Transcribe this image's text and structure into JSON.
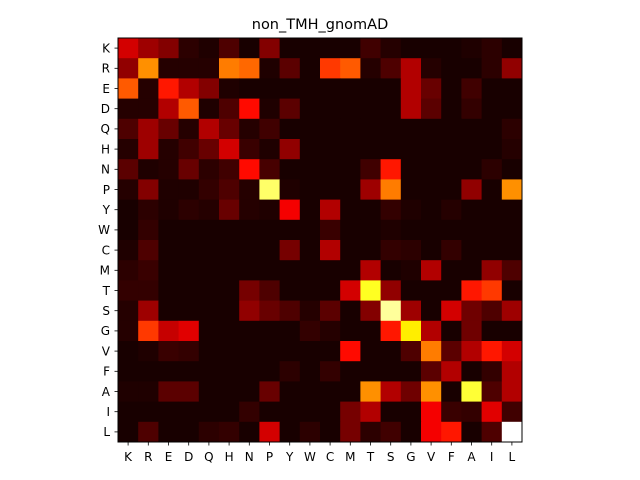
{
  "chart_data": {
    "type": "heatmap",
    "title": "non_TMH_gnomAD",
    "xlabel": "",
    "ylabel": "",
    "colormap": "hot",
    "x_labels": [
      "K",
      "R",
      "E",
      "D",
      "Q",
      "H",
      "N",
      "P",
      "Y",
      "W",
      "C",
      "M",
      "T",
      "S",
      "G",
      "V",
      "F",
      "A",
      "I",
      "L"
    ],
    "y_labels": [
      "K",
      "R",
      "E",
      "D",
      "Q",
      "H",
      "N",
      "P",
      "Y",
      "W",
      "C",
      "M",
      "T",
      "S",
      "G",
      "V",
      "F",
      "A",
      "I",
      "L"
    ],
    "vmin": 0,
    "vmax": 1,
    "values": [
      [
        0.3,
        0.22,
        0.18,
        0.05,
        0.03,
        0.1,
        0.02,
        0.18,
        0.02,
        0.02,
        0.02,
        0.02,
        0.08,
        0.04,
        0.02,
        0.02,
        0.02,
        0.03,
        0.05,
        0.02
      ],
      [
        0.2,
        0.58,
        0.04,
        0.04,
        0.04,
        0.55,
        0.52,
        0.03,
        0.12,
        0.02,
        0.45,
        0.5,
        0.04,
        0.1,
        0.25,
        0.04,
        0.02,
        0.02,
        0.05,
        0.2
      ],
      [
        0.5,
        0.04,
        0.4,
        0.25,
        0.18,
        0.03,
        0.02,
        0.02,
        0.02,
        0.02,
        0.02,
        0.02,
        0.02,
        0.02,
        0.25,
        0.14,
        0.02,
        0.08,
        0.02,
        0.02
      ],
      [
        0.04,
        0.04,
        0.25,
        0.5,
        0.03,
        0.1,
        0.38,
        0.03,
        0.12,
        0.02,
        0.02,
        0.02,
        0.02,
        0.02,
        0.25,
        0.12,
        0.02,
        0.06,
        0.02,
        0.02
      ],
      [
        0.1,
        0.22,
        0.14,
        0.04,
        0.25,
        0.14,
        0.04,
        0.08,
        0.02,
        0.02,
        0.02,
        0.02,
        0.02,
        0.02,
        0.02,
        0.02,
        0.02,
        0.02,
        0.02,
        0.05
      ],
      [
        0.04,
        0.22,
        0.04,
        0.08,
        0.14,
        0.3,
        0.07,
        0.03,
        0.2,
        0.02,
        0.02,
        0.02,
        0.02,
        0.02,
        0.02,
        0.02,
        0.02,
        0.02,
        0.02,
        0.04
      ],
      [
        0.12,
        0.03,
        0.04,
        0.14,
        0.05,
        0.08,
        0.38,
        0.09,
        0.02,
        0.02,
        0.02,
        0.02,
        0.08,
        0.4,
        0.02,
        0.02,
        0.02,
        0.02,
        0.05,
        0.02
      ],
      [
        0.04,
        0.18,
        0.03,
        0.03,
        0.06,
        0.1,
        0.04,
        0.85,
        0.03,
        0.02,
        0.02,
        0.02,
        0.22,
        0.55,
        0.02,
        0.02,
        0.02,
        0.2,
        0.02,
        0.58
      ],
      [
        0.02,
        0.05,
        0.03,
        0.05,
        0.04,
        0.14,
        0.04,
        0.03,
        0.35,
        0.02,
        0.25,
        0.02,
        0.02,
        0.06,
        0.03,
        0.02,
        0.04,
        0.02,
        0.02,
        0.02
      ],
      [
        0.02,
        0.06,
        0.02,
        0.02,
        0.02,
        0.02,
        0.02,
        0.02,
        0.02,
        0.02,
        0.07,
        0.02,
        0.02,
        0.03,
        0.02,
        0.02,
        0.02,
        0.02,
        0.02,
        0.02
      ],
      [
        0.03,
        0.1,
        0.02,
        0.02,
        0.02,
        0.02,
        0.02,
        0.02,
        0.16,
        0.02,
        0.25,
        0.02,
        0.02,
        0.06,
        0.05,
        0.02,
        0.06,
        0.02,
        0.02,
        0.02
      ],
      [
        0.05,
        0.07,
        0.02,
        0.02,
        0.02,
        0.02,
        0.02,
        0.02,
        0.02,
        0.02,
        0.02,
        0.02,
        0.25,
        0.02,
        0.03,
        0.25,
        0.02,
        0.02,
        0.2,
        0.1
      ],
      [
        0.06,
        0.06,
        0.02,
        0.02,
        0.02,
        0.02,
        0.16,
        0.1,
        0.02,
        0.02,
        0.02,
        0.3,
        0.78,
        0.2,
        0.02,
        0.02,
        0.02,
        0.4,
        0.45,
        0.02
      ],
      [
        0.04,
        0.22,
        0.02,
        0.02,
        0.02,
        0.02,
        0.2,
        0.14,
        0.1,
        0.04,
        0.12,
        0.02,
        0.18,
        0.9,
        0.22,
        0.02,
        0.3,
        0.15,
        0.1,
        0.22
      ],
      [
        0.04,
        0.45,
        0.28,
        0.32,
        0.02,
        0.02,
        0.02,
        0.02,
        0.02,
        0.06,
        0.04,
        0.02,
        0.02,
        0.4,
        0.72,
        0.25,
        0.02,
        0.15,
        0.02,
        0.02
      ],
      [
        0.02,
        0.03,
        0.07,
        0.06,
        0.02,
        0.02,
        0.02,
        0.02,
        0.02,
        0.02,
        0.02,
        0.38,
        0.02,
        0.02,
        0.1,
        0.55,
        0.12,
        0.25,
        0.4,
        0.3
      ],
      [
        0.02,
        0.02,
        0.02,
        0.02,
        0.02,
        0.02,
        0.02,
        0.02,
        0.05,
        0.02,
        0.06,
        0.02,
        0.02,
        0.02,
        0.02,
        0.12,
        0.25,
        0.02,
        0.06,
        0.25
      ],
      [
        0.03,
        0.03,
        0.12,
        0.12,
        0.02,
        0.02,
        0.02,
        0.14,
        0.02,
        0.02,
        0.02,
        0.02,
        0.58,
        0.25,
        0.15,
        0.58,
        0.02,
        0.8,
        0.1,
        0.25
      ],
      [
        0.02,
        0.02,
        0.02,
        0.02,
        0.02,
        0.02,
        0.06,
        0.02,
        0.02,
        0.02,
        0.02,
        0.16,
        0.25,
        0.02,
        0.02,
        0.35,
        0.07,
        0.06,
        0.32,
        0.08
      ],
      [
        0.02,
        0.1,
        0.02,
        0.02,
        0.05,
        0.06,
        0.02,
        0.3,
        0.02,
        0.05,
        0.02,
        0.16,
        0.05,
        0.08,
        0.02,
        0.35,
        0.4,
        0.02,
        0.1,
        1.0
      ]
    ]
  }
}
